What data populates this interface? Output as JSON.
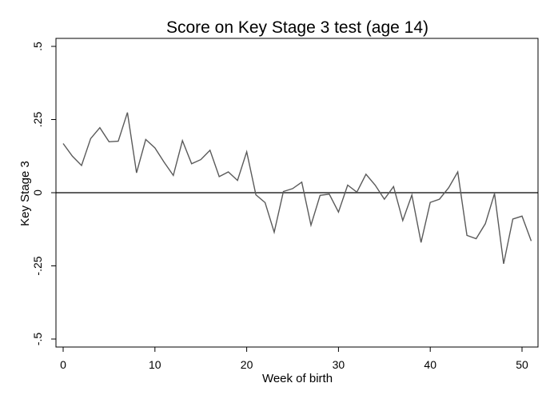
{
  "chart_data": {
    "type": "line",
    "title": "Score on Key Stage 3 test (age 14)",
    "xlabel": "Week of birth",
    "ylabel": "Key Stage 3",
    "xlim": [
      0,
      51
    ],
    "ylim": [
      -0.5,
      0.5
    ],
    "x_ticks": [
      0,
      10,
      20,
      30,
      40,
      50
    ],
    "x_tick_labels": [
      "0",
      "10",
      "20",
      "30",
      "40",
      "50"
    ],
    "y_ticks": [
      -0.5,
      -0.25,
      0,
      0.25,
      0.5
    ],
    "y_tick_labels": [
      "-.5",
      "-.25",
      "0",
      ".25",
      ".5"
    ],
    "reference_line": 0,
    "grid": false,
    "series": [
      {
        "x": [
          0,
          1,
          2,
          3,
          4,
          5,
          6,
          7,
          8,
          9,
          10,
          11,
          12,
          13,
          14,
          15,
          16,
          17,
          18,
          19,
          20,
          21,
          22,
          23,
          24,
          25,
          26,
          27,
          28,
          29,
          30,
          31,
          32,
          33,
          34,
          35,
          36,
          37,
          38,
          39,
          40,
          41,
          42,
          43,
          44,
          45,
          46,
          47,
          48,
          49,
          50,
          51
        ],
        "values": [
          0.168,
          0.125,
          0.093,
          0.185,
          0.222,
          0.174,
          0.176,
          0.274,
          0.068,
          0.182,
          0.153,
          0.104,
          0.059,
          0.178,
          0.099,
          0.113,
          0.145,
          0.055,
          0.071,
          0.042,
          0.14,
          -0.007,
          -0.034,
          -0.135,
          0.004,
          0.014,
          0.036,
          -0.111,
          -0.009,
          -0.005,
          -0.066,
          0.026,
          0.002,
          0.063,
          0.026,
          -0.022,
          0.021,
          -0.095,
          -0.008,
          -0.17,
          -0.033,
          -0.022,
          0.017,
          0.071,
          -0.146,
          -0.157,
          -0.106,
          -0.003,
          -0.243,
          -0.09,
          -0.08,
          -0.165
        ]
      }
    ],
    "colors": {
      "line": "#5a5a5a",
      "axis": "#000000",
      "reference": "#000000"
    }
  }
}
